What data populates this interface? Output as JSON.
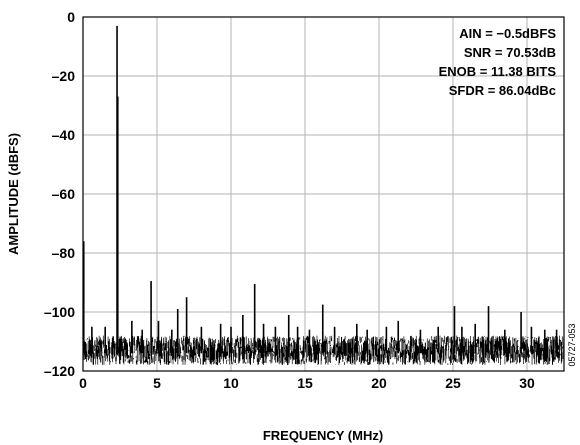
{
  "chart_data": {
    "type": "line",
    "title": "",
    "xlabel": "FREQUENCY (MHz)",
    "ylabel": "AMPLITUDE (dBFS)",
    "xlim": [
      0,
      32.5
    ],
    "ylim": [
      -120,
      0
    ],
    "x_ticks": [
      0,
      5,
      10,
      15,
      20,
      25,
      30
    ],
    "y_ticks": [
      0,
      -20,
      -40,
      -60,
      -80,
      -100,
      -120
    ],
    "grid": true,
    "annotations": [
      "AIN = −0.5dBFS",
      "SNR = 70.53dB",
      "ENOB = 11.38 BITS",
      "SFDR = 86.04dBc"
    ],
    "figure_id": "05727-053",
    "noise_floor": {
      "from": -118,
      "to": -108
    },
    "series": [
      {
        "name": "",
        "color": "#000000",
        "spurs": [
          {
            "x": 0.05,
            "y": -76
          },
          {
            "x": 0.6,
            "y": -105
          },
          {
            "x": 1.5,
            "y": -105
          },
          {
            "x": 2.3,
            "y": -3
          },
          {
            "x": 2.35,
            "y": -27
          },
          {
            "x": 3.3,
            "y": -103
          },
          {
            "x": 4.0,
            "y": -106
          },
          {
            "x": 4.6,
            "y": -89.5
          },
          {
            "x": 5.1,
            "y": -103
          },
          {
            "x": 6.0,
            "y": -106
          },
          {
            "x": 6.4,
            "y": -99
          },
          {
            "x": 7.0,
            "y": -95
          },
          {
            "x": 8.0,
            "y": -105
          },
          {
            "x": 9.3,
            "y": -104
          },
          {
            "x": 10.0,
            "y": -105
          },
          {
            "x": 10.8,
            "y": -101
          },
          {
            "x": 11.6,
            "y": -90.5
          },
          {
            "x": 12.2,
            "y": -104
          },
          {
            "x": 13.0,
            "y": -105
          },
          {
            "x": 13.9,
            "y": -101
          },
          {
            "x": 14.5,
            "y": -105
          },
          {
            "x": 15.3,
            "y": -106
          },
          {
            "x": 16.2,
            "y": -97.5
          },
          {
            "x": 17.0,
            "y": -105
          },
          {
            "x": 18.5,
            "y": -104
          },
          {
            "x": 19.2,
            "y": -106
          },
          {
            "x": 20.5,
            "y": -105
          },
          {
            "x": 21.3,
            "y": -103
          },
          {
            "x": 22.8,
            "y": -106
          },
          {
            "x": 24.0,
            "y": -105
          },
          {
            "x": 25.1,
            "y": -98
          },
          {
            "x": 25.6,
            "y": -105
          },
          {
            "x": 26.5,
            "y": -104
          },
          {
            "x": 27.4,
            "y": -98
          },
          {
            "x": 28.5,
            "y": -106
          },
          {
            "x": 29.6,
            "y": -100
          },
          {
            "x": 30.3,
            "y": -105
          },
          {
            "x": 31.2,
            "y": -106
          },
          {
            "x": 32.0,
            "y": -106
          }
        ]
      }
    ]
  }
}
